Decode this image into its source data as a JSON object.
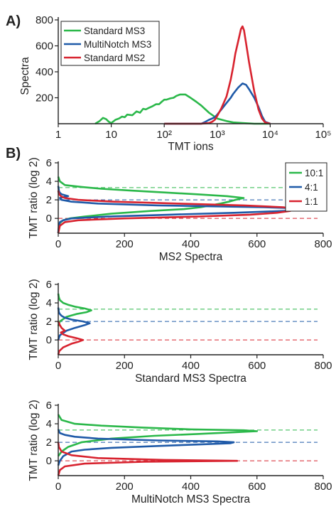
{
  "panel_labels": [
    "A)",
    "B)"
  ],
  "colors": {
    "green": "#2bb84a",
    "blue": "#1f5aa8",
    "red": "#d8232f",
    "axis": "#222222"
  },
  "chart_data": [
    {
      "type": "line",
      "panel": "A)",
      "xlabel": "TMT ions",
      "ylabel": "Spectra",
      "xscale": "log",
      "xlim": [
        1,
        100000
      ],
      "ylim": [
        0,
        800
      ],
      "x_ticks": [
        1,
        10,
        100,
        1000,
        10000,
        100000
      ],
      "x_tick_labels": [
        "1",
        "10",
        "10²",
        "10³",
        "10⁴",
        "10⁵"
      ],
      "y_ticks": [
        200,
        400,
        600,
        800
      ],
      "y_tick_labels": [
        "200",
        "400",
        "600",
        "800"
      ],
      "legend": {
        "placement": "top-left",
        "framed": true
      },
      "series": [
        {
          "name": "Standard MS3",
          "color": "green",
          "x": [
            5,
            6,
            7,
            8,
            9,
            10,
            12,
            14,
            16,
            18,
            20,
            25,
            30,
            35,
            40,
            45,
            50,
            60,
            70,
            80,
            90,
            100,
            110,
            130,
            150,
            170,
            200,
            250,
            300,
            400,
            500,
            700,
            1000,
            1500,
            2000,
            3000,
            5000,
            10000
          ],
          "y": [
            0,
            20,
            45,
            35,
            15,
            5,
            30,
            40,
            55,
            50,
            70,
            65,
            95,
            85,
            115,
            110,
            120,
            135,
            150,
            150,
            170,
            185,
            185,
            195,
            200,
            215,
            225,
            225,
            205,
            170,
            140,
            85,
            40,
            20,
            10,
            5,
            0,
            0
          ]
        },
        {
          "name": "MultiNotch MS3",
          "color": "blue",
          "x": [
            100,
            500,
            600,
            700,
            800,
            900,
            1000,
            1200,
            1500,
            1800,
            2000,
            2500,
            3000,
            3500,
            4000,
            5000,
            6000,
            7000,
            8000,
            10000
          ],
          "y": [
            0,
            0,
            15,
            30,
            40,
            50,
            70,
            110,
            160,
            200,
            230,
            280,
            310,
            300,
            265,
            200,
            130,
            60,
            15,
            0
          ]
        },
        {
          "name": "Standard MS2",
          "color": "red",
          "x": [
            100,
            500,
            700,
            800,
            900,
            1000,
            1200,
            1500,
            1800,
            2000,
            2200,
            2500,
            2800,
            3000,
            3200,
            3500,
            4000,
            5000,
            6000,
            7000,
            8000,
            10000
          ],
          "y": [
            0,
            0,
            5,
            15,
            30,
            60,
            120,
            210,
            340,
            440,
            540,
            640,
            730,
            750,
            720,
            620,
            470,
            250,
            110,
            40,
            10,
            0
          ]
        }
      ]
    },
    {
      "type": "line",
      "panel": "B)",
      "orientation": "horizontal",
      "xlabel": "MS2 Spectra",
      "ylabel": "TMT ratio (log 2)",
      "xlim": [
        0,
        800
      ],
      "ylim": [
        -1.6,
        6
      ],
      "x_ticks": [
        0,
        200,
        400,
        600,
        800
      ],
      "y_ticks": [
        0,
        2,
        4,
        6
      ],
      "legend": {
        "placement": "top-right",
        "framed": true
      },
      "reference_lines": [
        {
          "y": 3.32,
          "color": "green"
        },
        {
          "y": 2.0,
          "color": "blue"
        },
        {
          "y": 0.0,
          "color": "red"
        }
      ],
      "series": [
        {
          "name": "10:1",
          "color": "green",
          "y": [
            -1.6,
            -1.0,
            -0.5,
            -0.2,
            0.0,
            0.2,
            0.5,
            0.8,
            1.0,
            1.2,
            1.4,
            1.6,
            1.8,
            2.0,
            2.2,
            2.4,
            2.6,
            2.8,
            3.0,
            3.2,
            3.4,
            3.6,
            4.0,
            4.5
          ],
          "x": [
            0,
            2,
            5,
            15,
            35,
            80,
            160,
            280,
            380,
            430,
            460,
            490,
            515,
            535,
            560,
            510,
            420,
            320,
            220,
            130,
            70,
            20,
            5,
            0
          ]
        },
        {
          "name": "4:1",
          "color": "blue",
          "y": [
            -1.6,
            -0.8,
            -0.4,
            -0.2,
            0.0,
            0.2,
            0.4,
            0.6,
            0.8,
            0.9,
            1.0,
            1.1,
            1.2,
            1.3,
            1.4,
            1.6,
            1.8,
            2.0,
            2.2,
            2.4,
            2.6,
            2.8,
            3.0,
            3.5
          ],
          "x": [
            0,
            2,
            5,
            15,
            40,
            150,
            340,
            530,
            680,
            730,
            745,
            710,
            620,
            460,
            300,
            120,
            40,
            10,
            5,
            30,
            10,
            4,
            2,
            0
          ]
        },
        {
          "name": "1:1",
          "color": "red",
          "y": [
            -1.6,
            -0.8,
            -0.4,
            -0.2,
            0.0,
            0.2,
            0.4,
            0.6,
            0.8,
            1.0,
            1.2,
            1.4,
            1.6,
            1.8,
            2.0,
            2.2,
            2.4,
            2.6,
            2.8,
            3.0
          ],
          "x": [
            0,
            5,
            20,
            60,
            200,
            420,
            580,
            660,
            700,
            710,
            680,
            560,
            360,
            170,
            60,
            20,
            8,
            3,
            1,
            0
          ]
        }
      ]
    },
    {
      "type": "line",
      "panel": "B)",
      "orientation": "horizontal",
      "xlabel": "Standard MS3 Spectra",
      "ylabel": "TMT ratio (log 2)",
      "xlim": [
        0,
        800
      ],
      "ylim": [
        -1.6,
        6
      ],
      "x_ticks": [
        0,
        200,
        400,
        600,
        800
      ],
      "y_ticks": [
        0,
        2,
        4,
        6
      ],
      "reference_lines": [
        {
          "y": 3.32,
          "color": "green"
        },
        {
          "y": 2.0,
          "color": "blue"
        },
        {
          "y": 0.0,
          "color": "red"
        }
      ],
      "series": [
        {
          "name": "10:1",
          "color": "green",
          "y": [
            1.5,
            2.0,
            2.5,
            2.8,
            3.0,
            3.2,
            3.4,
            3.6,
            3.8,
            4.0,
            4.3,
            4.6,
            5.0
          ],
          "x": [
            0,
            5,
            25,
            55,
            85,
            100,
            80,
            50,
            30,
            15,
            5,
            2,
            0
          ]
        },
        {
          "name": "4:1",
          "color": "blue",
          "y": [
            0.0,
            0.5,
            1.0,
            1.3,
            1.6,
            1.8,
            2.0,
            2.2,
            2.4,
            2.6,
            2.8,
            3.0,
            3.5
          ],
          "x": [
            0,
            5,
            25,
            50,
            80,
            95,
            75,
            40,
            20,
            10,
            5,
            2,
            0
          ]
        },
        {
          "name": "1:1",
          "color": "red",
          "y": [
            -1.6,
            -1.2,
            -0.8,
            -0.4,
            -0.2,
            0.0,
            0.2,
            0.4,
            0.6,
            0.8,
            1.0,
            1.3,
            1.6,
            2.0
          ],
          "x": [
            0,
            3,
            15,
            40,
            60,
            75,
            55,
            30,
            15,
            8,
            20,
            10,
            5,
            0
          ]
        }
      ]
    },
    {
      "type": "line",
      "panel": "B)",
      "orientation": "horizontal",
      "xlabel": "MultiNotch MS3 Spectra",
      "ylabel": "TMT ratio (log 2)",
      "xlim": [
        0,
        800
      ],
      "ylim": [
        -1.6,
        6
      ],
      "x_ticks": [
        0,
        200,
        400,
        600,
        800
      ],
      "y_ticks": [
        0,
        2,
        4,
        6
      ],
      "reference_lines": [
        {
          "y": 3.32,
          "color": "green"
        },
        {
          "y": 2.0,
          "color": "blue"
        },
        {
          "y": 0.0,
          "color": "red"
        }
      ],
      "series": [
        {
          "name": "10:1",
          "color": "green",
          "y": [
            0.5,
            1.0,
            1.5,
            2.0,
            2.4,
            2.7,
            2.9,
            3.1,
            3.2,
            3.3,
            3.4,
            3.6,
            3.8,
            4.0,
            4.4,
            5.0
          ],
          "x": [
            0,
            10,
            30,
            70,
            160,
            290,
            420,
            540,
            600,
            560,
            400,
            250,
            130,
            50,
            10,
            0
          ]
        },
        {
          "name": "4:1",
          "color": "blue",
          "y": [
            -0.5,
            0.0,
            0.5,
            1.0,
            1.2,
            1.4,
            1.6,
            1.8,
            1.9,
            2.0,
            2.1,
            2.2,
            2.4,
            2.6,
            2.8,
            3.0,
            3.4
          ],
          "x": [
            0,
            5,
            15,
            40,
            80,
            160,
            300,
            450,
            520,
            530,
            480,
            300,
            120,
            50,
            20,
            5,
            0
          ]
        },
        {
          "name": "1:1",
          "color": "red",
          "y": [
            -1.6,
            -1.0,
            -0.6,
            -0.3,
            -0.1,
            0.0,
            0.1,
            0.3,
            0.6,
            1.0,
            1.5,
            2.0
          ],
          "x": [
            0,
            5,
            20,
            80,
            260,
            540,
            320,
            120,
            40,
            10,
            2,
            0
          ]
        }
      ]
    }
  ]
}
